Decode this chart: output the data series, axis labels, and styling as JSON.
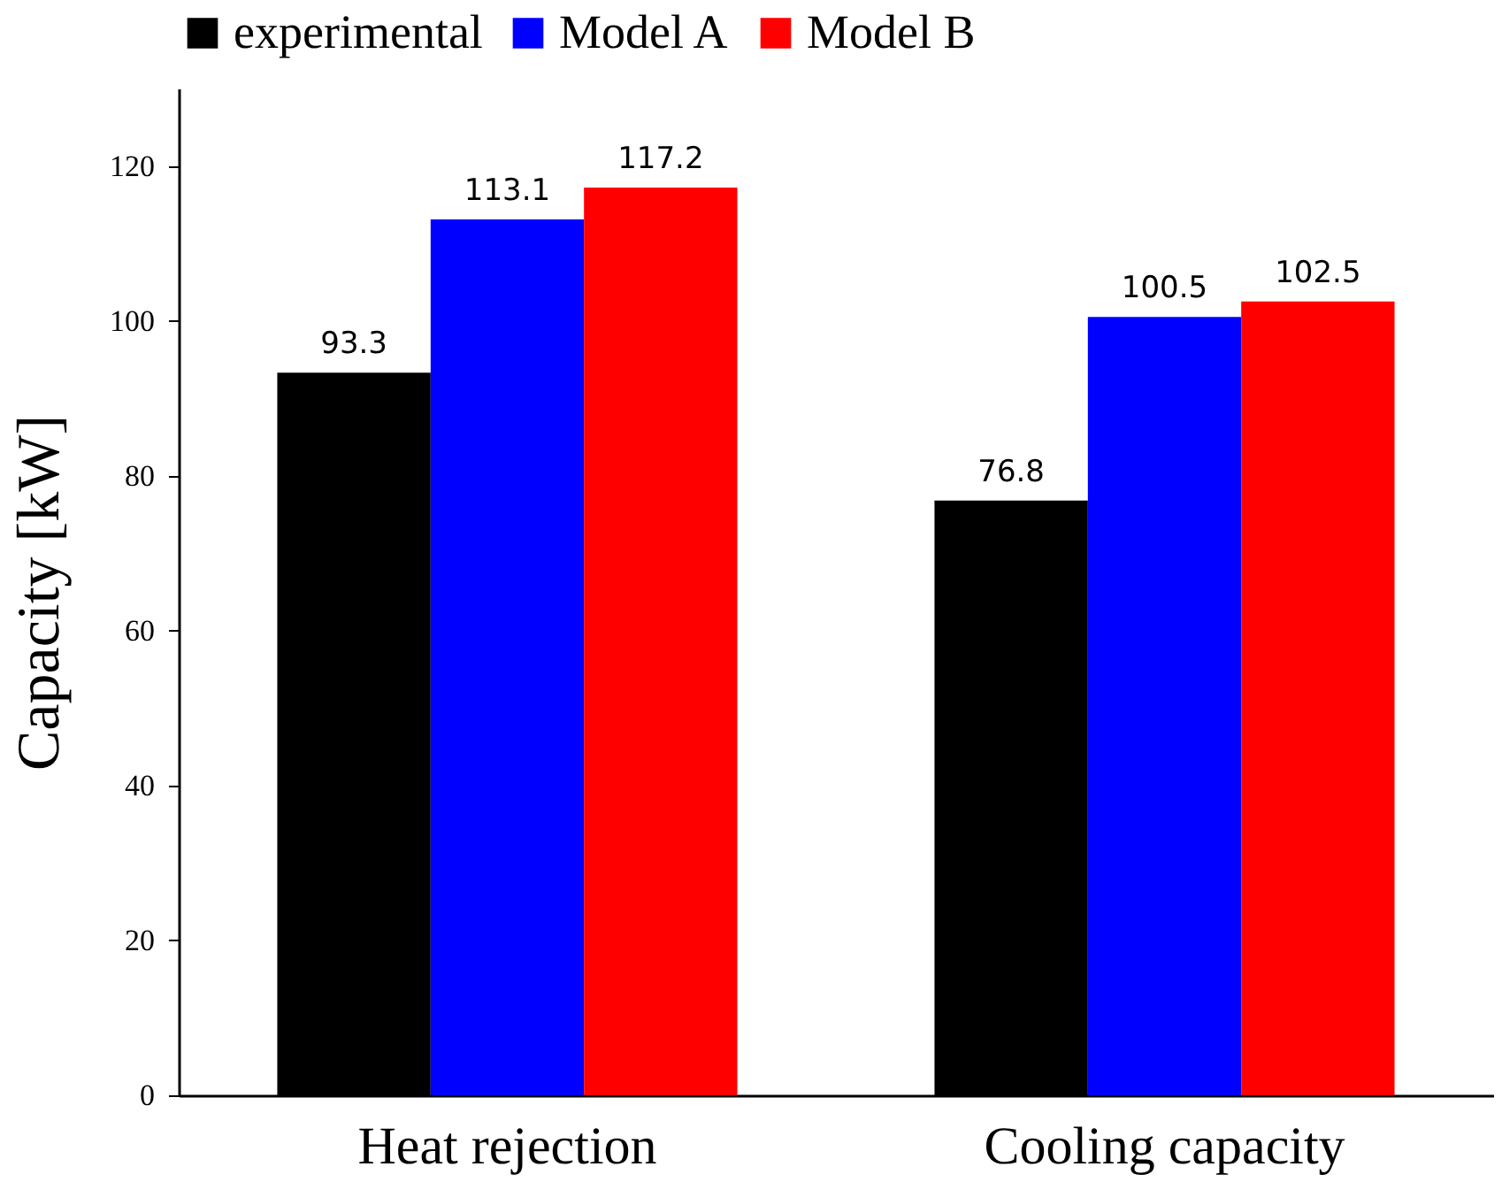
{
  "chart_data": {
    "type": "bar",
    "ylabel": "Capacity [kW]",
    "categories": [
      "Heat rejection",
      "Cooling capacity"
    ],
    "series": [
      {
        "name": "experimental",
        "color": "#000000",
        "values": [
          93.3,
          76.8
        ]
      },
      {
        "name": "Model A",
        "color": "#0000ff",
        "values": [
          113.1,
          100.5
        ]
      },
      {
        "name": "Model B",
        "color": "#ff0000",
        "values": [
          117.2,
          102.5
        ]
      }
    ],
    "ylim": [
      0,
      130
    ],
    "yticks": [
      0,
      20,
      40,
      60,
      80,
      100,
      120
    ],
    "grid": false,
    "legend": "top",
    "data_labels": true
  }
}
